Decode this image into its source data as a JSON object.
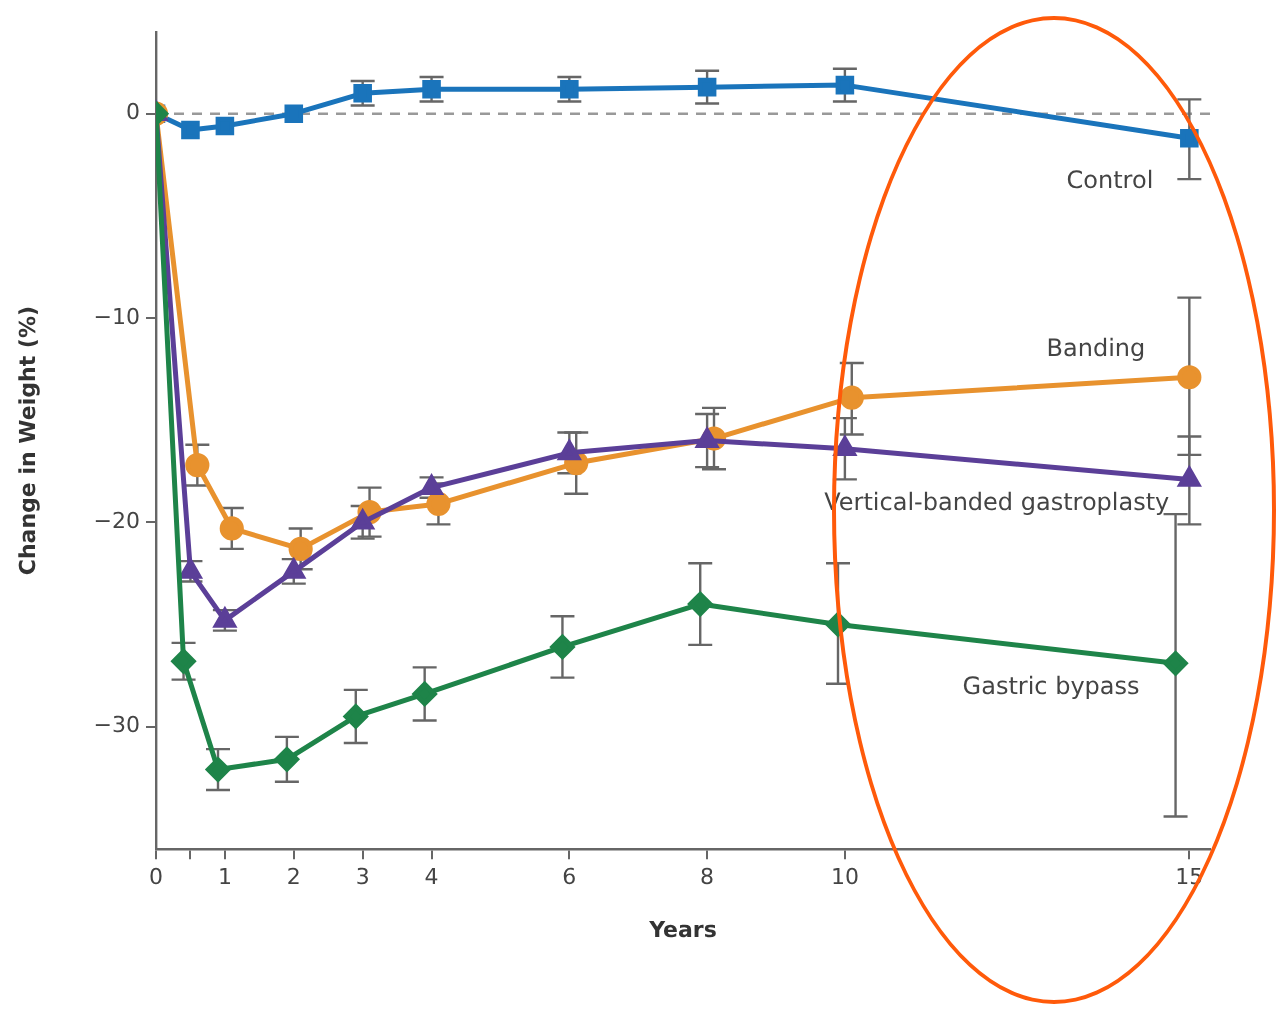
{
  "chart_data": {
    "type": "line",
    "xlabel": "Years",
    "ylabel": "Change in Weight (%)",
    "xlim": [
      0,
      15.3
    ],
    "ylim": [
      -36,
      4
    ],
    "xticks": [
      0,
      {
        "value": 0.5,
        "label": null
      },
      1,
      2,
      3,
      4,
      6,
      8,
      10,
      15
    ],
    "yticks": [
      {
        "value": -30,
        "label": "−30"
      },
      {
        "value": -20,
        "label": "−20"
      },
      {
        "value": -10,
        "label": "−10"
      },
      0
    ],
    "grid": false,
    "legend": false,
    "line_style": "solid",
    "ref_lines": [
      {
        "axis": "y",
        "value": 0,
        "color": "#999999",
        "line_style": "dashed"
      }
    ],
    "series": [
      {
        "name": "Control",
        "color": "#1a74bb",
        "marker": "square",
        "x": [
          0,
          0.5,
          1,
          2,
          3,
          4,
          6,
          8,
          10,
          15
        ],
        "values": [
          0,
          -0.8,
          -0.6,
          0,
          1.0,
          1.2,
          1.2,
          1.3,
          1.4,
          -1.2
        ],
        "errors": [
          null,
          null,
          null,
          null,
          0.6,
          0.6,
          0.6,
          0.8,
          0.8,
          [
            -3.2,
            0.7
          ]
        ]
      },
      {
        "name": "Banding",
        "color": "#e8922e",
        "marker": "circle",
        "x": [
          0,
          0.6,
          1.1,
          2.1,
          3.1,
          4.1,
          6.1,
          8.1,
          10.1,
          15
        ],
        "values": [
          0,
          -17.2,
          -20.3,
          -21.3,
          -19.5,
          -19.1,
          -17.1,
          -15.9,
          -13.9,
          -12.9
        ],
        "errors": [
          null,
          1,
          1,
          1,
          1.2,
          1,
          1.5,
          1.5,
          [
            -15.7,
            -12.2
          ],
          [
            -16.7,
            -9.0
          ]
        ]
      },
      {
        "name": "Vertical-banded gastroplasty",
        "color": "#5b3f98",
        "marker": "triangle",
        "x": [
          0,
          0.5,
          1,
          2,
          3,
          4,
          6,
          8,
          10,
          15
        ],
        "values": [
          0,
          -22.4,
          -24.8,
          -22.4,
          -20,
          -18.3,
          -16.6,
          -16,
          -16.4,
          -17.9
        ],
        "errors": [
          null,
          0.5,
          0.5,
          0.6,
          0.8,
          0.5,
          1,
          1.3,
          1.5,
          [
            -20.1,
            -15.8
          ]
        ]
      },
      {
        "name": "Gastric bypass",
        "color": "#1e8449",
        "marker": "diamond",
        "x": [
          0,
          0.4,
          0.9,
          1.9,
          2.9,
          3.9,
          5.9,
          7.9,
          9.9,
          14.8
        ],
        "values": [
          0,
          -26.8,
          -32.1,
          -31.6,
          -29.5,
          -28.4,
          -26.1,
          -24,
          -25,
          -26.9
        ],
        "errors": [
          null,
          0.9,
          1,
          1.1,
          1.3,
          1.3,
          1.5,
          2,
          [
            -27.9,
            -22
          ],
          [
            -34.4,
            -19.6
          ]
        ]
      }
    ]
  }
}
